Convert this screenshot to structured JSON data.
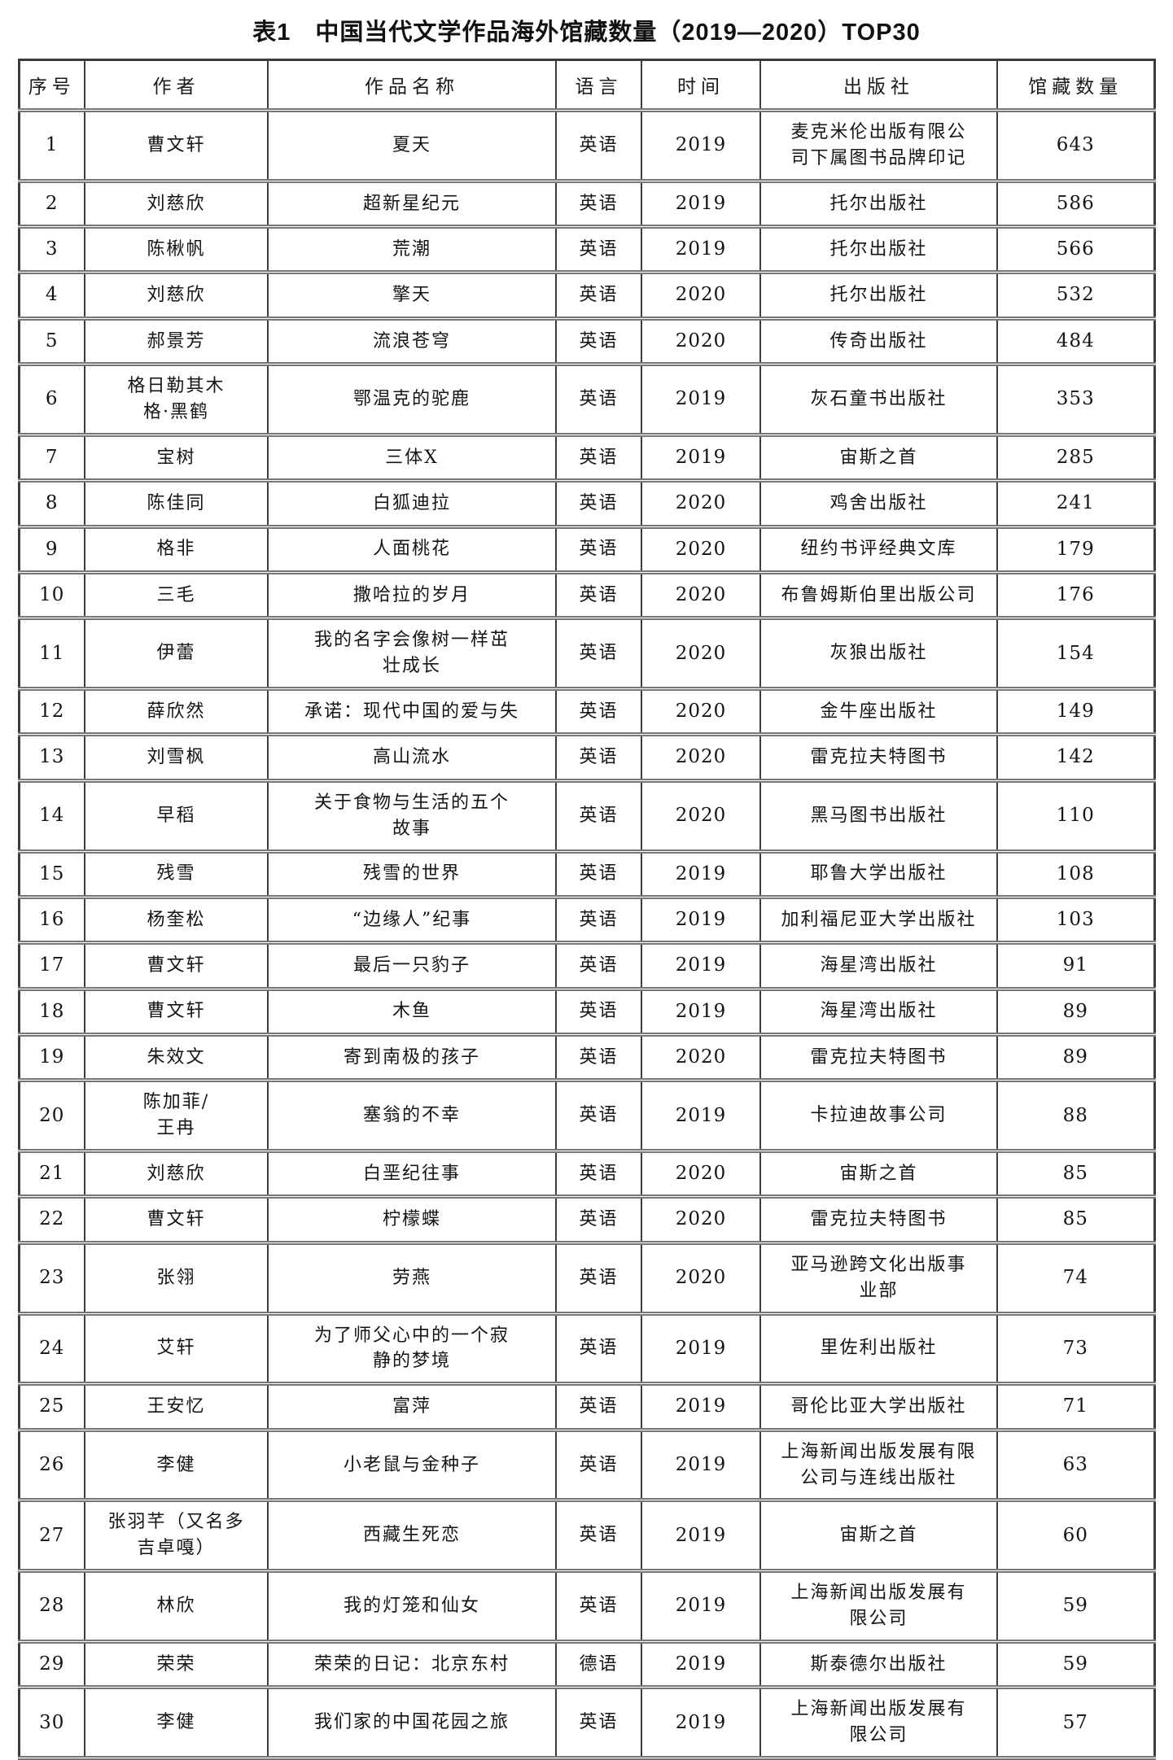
{
  "title": "表1　中国当代文学作品海外馆藏数量（2019—2020）TOP30",
  "table": {
    "headers": [
      "序号",
      "作者",
      "作品名称",
      "语言",
      "时间",
      "出版社",
      "馆藏数量"
    ],
    "rows": [
      [
        "1",
        "曹文轩",
        "夏天",
        "英语",
        "2019",
        "麦克米伦出版有限公\n司下属图书品牌印记",
        "643"
      ],
      [
        "2",
        "刘慈欣",
        "超新星纪元",
        "英语",
        "2019",
        "托尔出版社",
        "586"
      ],
      [
        "3",
        "陈楸帆",
        "荒潮",
        "英语",
        "2019",
        "托尔出版社",
        "566"
      ],
      [
        "4",
        "刘慈欣",
        "擎天",
        "英语",
        "2020",
        "托尔出版社",
        "532"
      ],
      [
        "5",
        "郝景芳",
        "流浪苍穹",
        "英语",
        "2020",
        "传奇出版社",
        "484"
      ],
      [
        "6",
        "格日勒其木\n格·黑鹤",
        "鄂温克的驼鹿",
        "英语",
        "2019",
        "灰石童书出版社",
        "353"
      ],
      [
        "7",
        "宝树",
        "三体X",
        "英语",
        "2019",
        "宙斯之首",
        "285"
      ],
      [
        "8",
        "陈佳同",
        "白狐迪拉",
        "英语",
        "2020",
        "鸡舍出版社",
        "241"
      ],
      [
        "9",
        "格非",
        "人面桃花",
        "英语",
        "2020",
        "纽约书评经典文库",
        "179"
      ],
      [
        "10",
        "三毛",
        "撒哈拉的岁月",
        "英语",
        "2020",
        "布鲁姆斯伯里出版公司",
        "176"
      ],
      [
        "11",
        "伊蕾",
        "我的名字会像树一样茁\n壮成长",
        "英语",
        "2020",
        "灰狼出版社",
        "154"
      ],
      [
        "12",
        "薛欣然",
        "承诺：现代中国的爱与失",
        "英语",
        "2020",
        "金牛座出版社",
        "149"
      ],
      [
        "13",
        "刘雪枫",
        "高山流水",
        "英语",
        "2020",
        "雷克拉夫特图书",
        "142"
      ],
      [
        "14",
        "早稻",
        "关于食物与生活的五个\n故事",
        "英语",
        "2020",
        "黑马图书出版社",
        "110"
      ],
      [
        "15",
        "残雪",
        "残雪的世界",
        "英语",
        "2019",
        "耶鲁大学出版社",
        "108"
      ],
      [
        "16",
        "杨奎松",
        "“边缘人”纪事",
        "英语",
        "2019",
        "加利福尼亚大学出版社",
        "103"
      ],
      [
        "17",
        "曹文轩",
        "最后一只豹子",
        "英语",
        "2019",
        "海星湾出版社",
        "91"
      ],
      [
        "18",
        "曹文轩",
        "木鱼",
        "英语",
        "2019",
        "海星湾出版社",
        "89"
      ],
      [
        "19",
        "朱效文",
        "寄到南极的孩子",
        "英语",
        "2020",
        "雷克拉夫特图书",
        "89"
      ],
      [
        "20",
        "陈加菲/\n王冉",
        "塞翁的不幸",
        "英语",
        "2019",
        "卡拉迪故事公司",
        "88"
      ],
      [
        "21",
        "刘慈欣",
        "白垩纪往事",
        "英语",
        "2020",
        "宙斯之首",
        "85"
      ],
      [
        "22",
        "曹文轩",
        "柠檬蝶",
        "英语",
        "2020",
        "雷克拉夫特图书",
        "85"
      ],
      [
        "23",
        "张翎",
        "劳燕",
        "英语",
        "2020",
        "亚马逊跨文化出版事\n业部",
        "74"
      ],
      [
        "24",
        "艾轩",
        "为了师父心中的一个寂\n静的梦境",
        "英语",
        "2019",
        "里佐利出版社",
        "73"
      ],
      [
        "25",
        "王安忆",
        "富萍",
        "英语",
        "2019",
        "哥伦比亚大学出版社",
        "71"
      ],
      [
        "26",
        "李健",
        "小老鼠与金种子",
        "英语",
        "2019",
        "上海新闻出版发展有限\n公司与连线出版社",
        "63"
      ],
      [
        "27",
        "张羽芊（又名多\n吉卓嘎）",
        "西藏生死恋",
        "英语",
        "2019",
        "宙斯之首",
        "60"
      ],
      [
        "28",
        "林欣",
        "我的灯笼和仙女",
        "英语",
        "2019",
        "上海新闻出版发展有\n限公司",
        "59"
      ],
      [
        "29",
        "荣荣",
        "荣荣的日记：北京东村",
        "德语",
        "2019",
        "斯泰德尔出版社",
        "59"
      ],
      [
        "30",
        "李健",
        "我们家的中国花园之旅",
        "英语",
        "2019",
        "上海新闻出版发展有\n限公司",
        "57"
      ]
    ]
  }
}
